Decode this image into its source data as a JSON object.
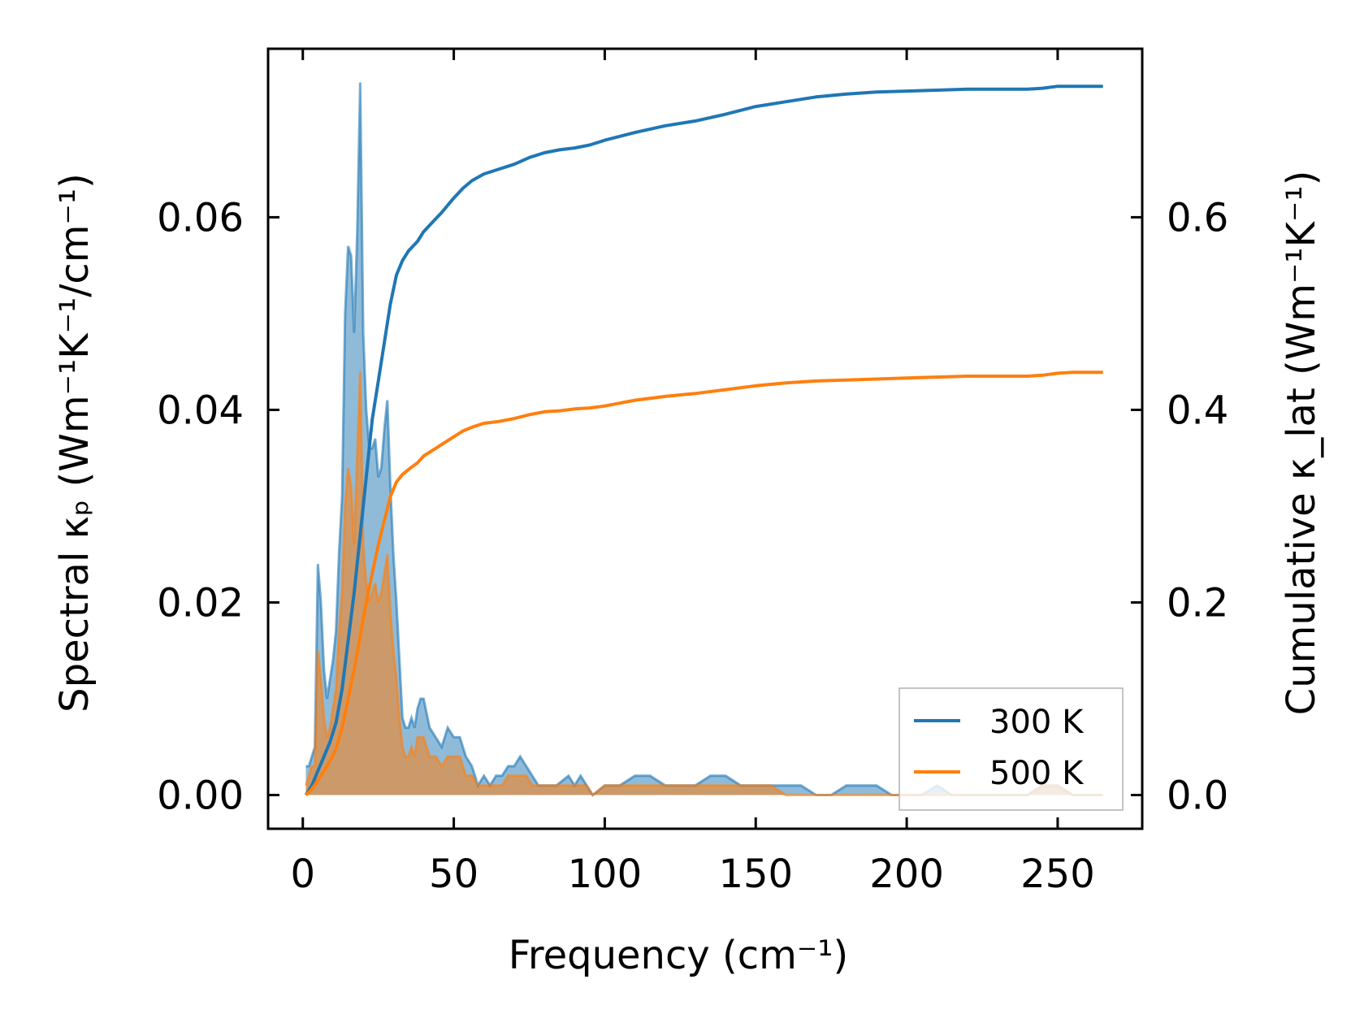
{
  "chart_data": {
    "type": "line",
    "title": "",
    "xlabel": "Frequency (cm⁻¹)",
    "ylabel": "Spectral κₚ (Wm⁻¹K⁻¹/cm⁻¹)",
    "y2label": "Cumulative κ_lat (Wm⁻¹K⁻¹)",
    "xlim": [
      -11.5,
      278
    ],
    "ylim": [
      -0.0035,
      0.0775
    ],
    "y2lim": [
      -0.035,
      0.775
    ],
    "xticks": [
      0,
      50,
      100,
      150,
      200,
      250
    ],
    "xtick_labels": [
      "0",
      "50",
      "100",
      "150",
      "200",
      "250"
    ],
    "yticks": [
      0,
      0.02,
      0.04,
      0.06
    ],
    "ytick_labels": [
      "0.00",
      "0.02",
      "0.04",
      "0.06"
    ],
    "y2ticks": [
      0,
      0.2,
      0.4,
      0.6
    ],
    "y2tick_labels": [
      "0.0",
      "0.2",
      "0.4",
      "0.6"
    ],
    "legend_position": "bottom-right",
    "legend": [
      "300 K",
      "500 K"
    ],
    "colors": {
      "s300": "#1f77b4",
      "s500": "#ff7f0e"
    },
    "spectral_x": [
      1,
      2,
      3,
      4,
      5,
      6,
      7,
      8,
      9,
      10,
      11,
      12,
      13,
      14,
      15,
      16,
      17,
      18,
      19,
      20,
      21,
      22,
      23,
      24,
      25,
      26,
      27,
      28,
      29,
      30,
      31,
      32,
      33,
      34,
      35,
      36,
      37,
      38,
      39,
      40,
      42,
      44,
      46,
      48,
      50,
      52,
      54,
      56,
      58,
      60,
      62,
      64,
      66,
      68,
      70,
      72,
      74,
      76,
      78,
      80,
      84,
      88,
      90,
      92,
      94,
      96,
      100,
      105,
      110,
      115,
      120,
      125,
      130,
      135,
      140,
      145,
      150,
      155,
      160,
      165,
      170,
      175,
      180,
      185,
      190,
      195,
      200,
      205,
      210,
      215,
      220,
      230,
      240,
      245,
      250,
      255,
      260,
      265
    ],
    "series": [
      {
        "name": "300 K",
        "spectral": [
          0.003,
          0.003,
          0.004,
          0.005,
          0.024,
          0.02,
          0.013,
          0.01,
          0.012,
          0.014,
          0.017,
          0.025,
          0.031,
          0.05,
          0.057,
          0.056,
          0.048,
          0.058,
          0.074,
          0.048,
          0.04,
          0.036,
          0.036,
          0.037,
          0.033,
          0.034,
          0.038,
          0.041,
          0.032,
          0.025,
          0.02,
          0.014,
          0.008,
          0.007,
          0.007,
          0.008,
          0.007,
          0.009,
          0.01,
          0.01,
          0.007,
          0.006,
          0.005,
          0.007,
          0.006,
          0.006,
          0.004,
          0.003,
          0.001,
          0.002,
          0.001,
          0.002,
          0.002,
          0.003,
          0.003,
          0.004,
          0.003,
          0.002,
          0.001,
          0.001,
          0.001,
          0.002,
          0.001,
          0.002,
          0.001,
          0.0,
          0.001,
          0.001,
          0.002,
          0.002,
          0.001,
          0.001,
          0.001,
          0.002,
          0.002,
          0.001,
          0.001,
          0.001,
          0.001,
          0.001,
          0.0,
          0.0,
          0.001,
          0.001,
          0.001,
          0.0,
          0.0,
          0.0,
          0.001,
          0.0,
          0.0,
          0.0,
          0.0,
          0.001,
          0.001,
          0.0,
          0.0,
          0.0
        ],
        "cumulative_x": [
          1,
          3,
          5,
          7,
          9,
          11,
          13,
          15,
          17,
          19,
          21,
          23,
          25,
          27,
          29,
          31,
          33,
          35,
          38,
          40,
          43,
          46,
          50,
          53,
          56,
          60,
          65,
          70,
          75,
          80,
          85,
          90,
          95,
          100,
          110,
          120,
          130,
          140,
          150,
          160,
          170,
          180,
          190,
          200,
          210,
          220,
          230,
          240,
          245,
          250,
          255,
          260,
          265
        ],
        "cumulative": [
          0.0,
          0.01,
          0.025,
          0.04,
          0.055,
          0.075,
          0.11,
          0.16,
          0.21,
          0.27,
          0.33,
          0.39,
          0.43,
          0.47,
          0.51,
          0.54,
          0.555,
          0.565,
          0.575,
          0.585,
          0.595,
          0.605,
          0.62,
          0.63,
          0.638,
          0.645,
          0.65,
          0.655,
          0.662,
          0.667,
          0.67,
          0.672,
          0.675,
          0.68,
          0.688,
          0.695,
          0.7,
          0.707,
          0.715,
          0.72,
          0.725,
          0.728,
          0.73,
          0.731,
          0.732,
          0.733,
          0.733,
          0.733,
          0.734,
          0.736,
          0.736,
          0.736,
          0.736
        ]
      },
      {
        "name": "500 K",
        "spectral": [
          0.001,
          0.002,
          0.003,
          0.003,
          0.015,
          0.012,
          0.008,
          0.006,
          0.007,
          0.009,
          0.011,
          0.017,
          0.021,
          0.03,
          0.034,
          0.032,
          0.026,
          0.035,
          0.044,
          0.026,
          0.022,
          0.02,
          0.021,
          0.022,
          0.02,
          0.021,
          0.023,
          0.025,
          0.019,
          0.015,
          0.012,
          0.008,
          0.005,
          0.004,
          0.004,
          0.005,
          0.004,
          0.006,
          0.006,
          0.006,
          0.004,
          0.004,
          0.003,
          0.004,
          0.004,
          0.004,
          0.002,
          0.002,
          0.001,
          0.001,
          0.001,
          0.001,
          0.001,
          0.002,
          0.002,
          0.002,
          0.002,
          0.001,
          0.001,
          0.001,
          0.001,
          0.001,
          0.001,
          0.001,
          0.001,
          0.0,
          0.001,
          0.001,
          0.001,
          0.001,
          0.001,
          0.001,
          0.001,
          0.001,
          0.001,
          0.001,
          0.001,
          0.001,
          0.0,
          0.0,
          0.0,
          0.0,
          0.0,
          0.0,
          0.0,
          0.0,
          0.0,
          0.0,
          0.0,
          0.0,
          0.0,
          0.0,
          0.0,
          0.001,
          0.001,
          0.0,
          0.0,
          0.0
        ],
        "cumulative_x": [
          1,
          3,
          5,
          7,
          9,
          11,
          13,
          15,
          17,
          19,
          21,
          23,
          25,
          27,
          29,
          31,
          33,
          35,
          38,
          40,
          43,
          46,
          50,
          53,
          56,
          60,
          65,
          70,
          75,
          80,
          85,
          90,
          95,
          100,
          110,
          120,
          130,
          140,
          150,
          160,
          170,
          180,
          190,
          200,
          210,
          220,
          230,
          240,
          245,
          250,
          255,
          260,
          265
        ],
        "cumulative": [
          0.0,
          0.006,
          0.015,
          0.025,
          0.035,
          0.048,
          0.07,
          0.1,
          0.13,
          0.165,
          0.2,
          0.23,
          0.26,
          0.285,
          0.31,
          0.325,
          0.333,
          0.338,
          0.345,
          0.352,
          0.358,
          0.364,
          0.372,
          0.378,
          0.382,
          0.386,
          0.388,
          0.391,
          0.395,
          0.398,
          0.399,
          0.401,
          0.402,
          0.404,
          0.41,
          0.414,
          0.417,
          0.421,
          0.425,
          0.428,
          0.43,
          0.431,
          0.432,
          0.433,
          0.434,
          0.435,
          0.435,
          0.435,
          0.436,
          0.438,
          0.439,
          0.439,
          0.439
        ]
      }
    ]
  }
}
